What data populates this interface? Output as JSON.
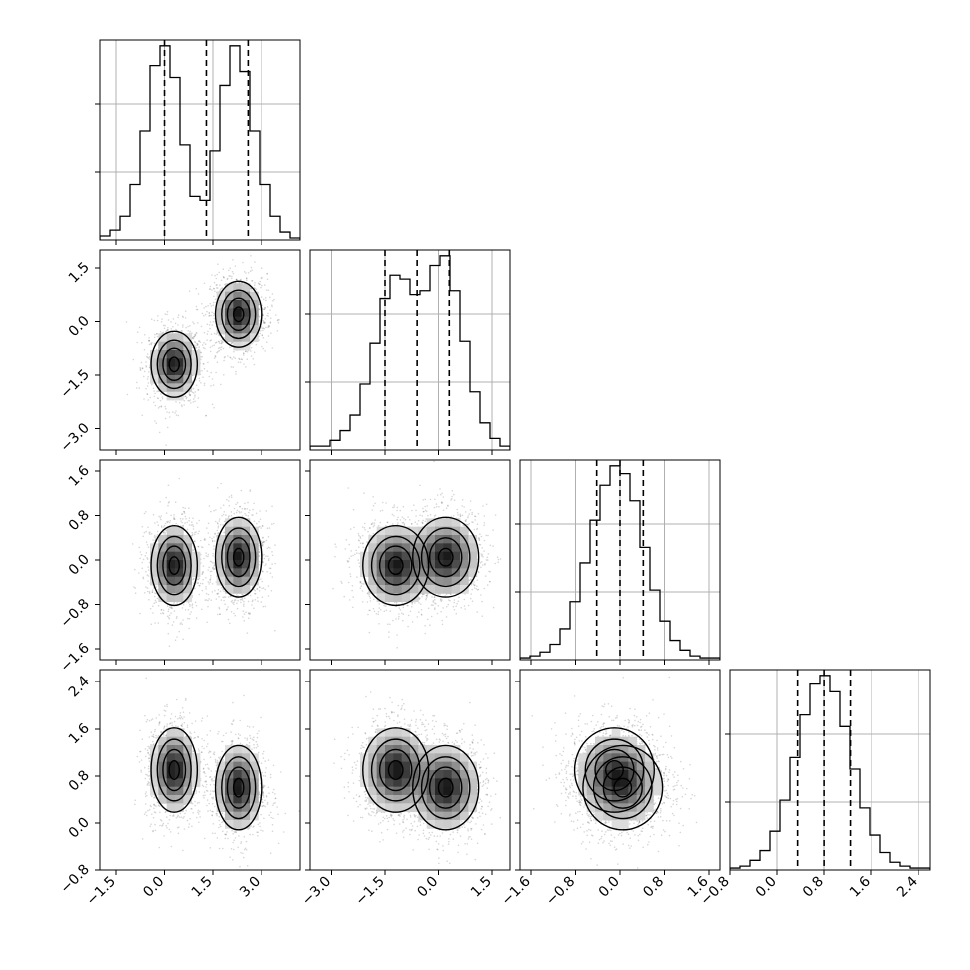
{
  "chart_data": {
    "type": "corner",
    "parameters": 4,
    "grid": true,
    "axes": [
      {
        "range": [
          -2.0,
          4.2
        ],
        "ticks": [
          -1.5,
          0.0,
          1.5,
          3.0
        ],
        "tick_labels": [
          "−1.5",
          "0.0",
          "1.5",
          "3.0"
        ]
      },
      {
        "range": [
          -3.6,
          2.0
        ],
        "ticks": [
          -3.0,
          -1.5,
          0.0,
          1.5
        ],
        "tick_labels": [
          "−3.0",
          "−1.5",
          "0.0",
          "1.5"
        ]
      },
      {
        "range": [
          -1.8,
          1.8
        ],
        "ticks": [
          -1.6,
          -0.8,
          0.0,
          0.8,
          1.6
        ],
        "tick_labels": [
          "−1.6",
          "−0.8",
          "0.0",
          "0.8",
          "1.6"
        ]
      },
      {
        "range": [
          -0.8,
          2.6
        ],
        "ticks": [
          -0.8,
          0.0,
          0.8,
          1.6,
          2.4
        ],
        "tick_labels": [
          "−0.8",
          "0.0",
          "0.8",
          "1.6",
          "2.4"
        ]
      }
    ],
    "marginals": [
      {
        "quantiles": [
          0.0,
          1.3,
          2.6
        ],
        "counts": [
          0.02,
          0.05,
          0.12,
          0.28,
          0.55,
          0.88,
          0.98,
          0.82,
          0.48,
          0.22,
          0.2,
          0.45,
          0.78,
          0.98,
          0.85,
          0.55,
          0.28,
          0.12,
          0.04,
          0.01
        ]
      },
      {
        "quantiles": [
          -1.5,
          -0.6,
          0.3
        ],
        "counts": [
          0.02,
          0.02,
          0.05,
          0.1,
          0.18,
          0.34,
          0.55,
          0.78,
          0.9,
          0.88,
          0.8,
          0.82,
          0.95,
          1.0,
          0.82,
          0.56,
          0.3,
          0.14,
          0.06,
          0.02
        ]
      },
      {
        "quantiles": [
          -0.42,
          0.0,
          0.42
        ],
        "counts": [
          0.01,
          0.02,
          0.04,
          0.08,
          0.16,
          0.3,
          0.5,
          0.72,
          0.9,
          1.0,
          0.96,
          0.82,
          0.58,
          0.36,
          0.2,
          0.1,
          0.05,
          0.02,
          0.01,
          0.01
        ]
      },
      {
        "quantiles": [
          0.35,
          0.8,
          1.25
        ],
        "counts": [
          0.01,
          0.02,
          0.05,
          0.1,
          0.2,
          0.36,
          0.58,
          0.8,
          0.96,
          1.0,
          0.92,
          0.74,
          0.52,
          0.32,
          0.18,
          0.09,
          0.04,
          0.02,
          0.01,
          0.01
        ]
      }
    ],
    "components": [
      {
        "weight": 0.5,
        "mean": [
          0.3,
          -1.2,
          -0.1,
          0.9
        ],
        "sd": [
          0.35,
          0.45,
          0.35,
          0.35
        ]
      },
      {
        "weight": 0.5,
        "mean": [
          2.3,
          0.2,
          0.05,
          0.6
        ],
        "sd": [
          0.35,
          0.45,
          0.35,
          0.35
        ]
      }
    ]
  }
}
